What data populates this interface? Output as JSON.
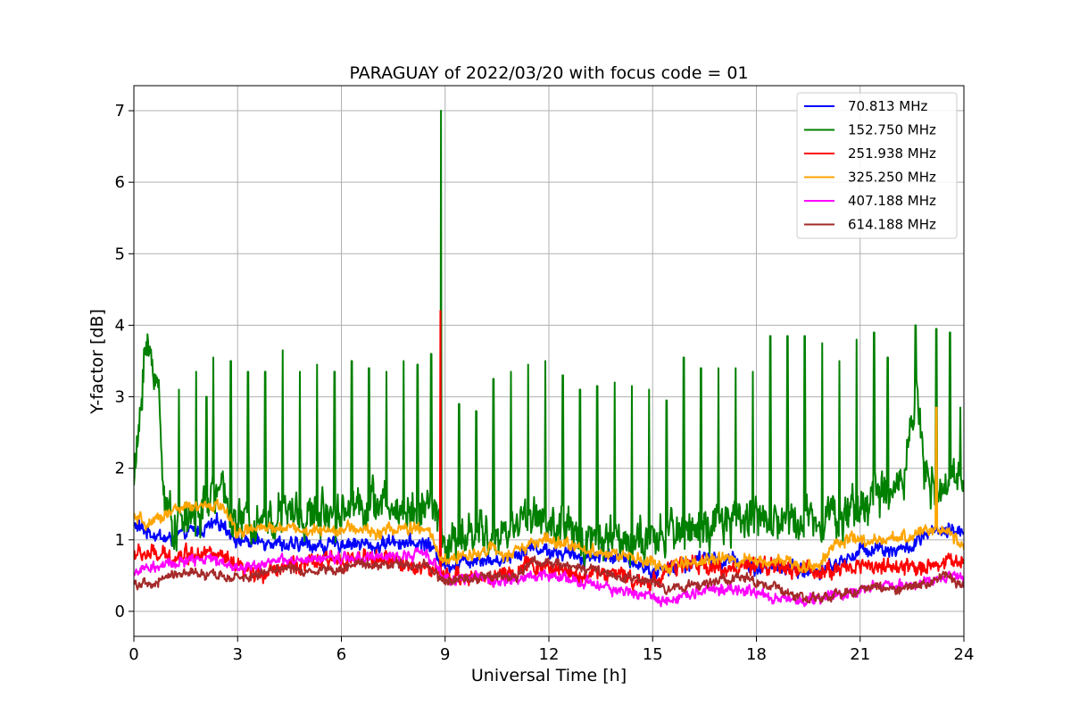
{
  "chart_data": {
    "type": "line",
    "title": "PARAGUAY of 2022/03/20 with focus code = 01",
    "xlabel": "Universal Time [h]",
    "ylabel": "Y-factor [dB]",
    "xlim": [
      0,
      24
    ],
    "ylim": [
      -0.35,
      7.35
    ],
    "xticks": [
      0,
      3,
      6,
      9,
      12,
      15,
      18,
      21,
      24
    ],
    "yticks": [
      0,
      1,
      2,
      3,
      4,
      5,
      6,
      7
    ],
    "grid": true,
    "legend_position": "top-right",
    "series": [
      {
        "name": " 70.813 MHz",
        "color": "#0000ff",
        "x": [
          0,
          0.5,
          1,
          1.5,
          2,
          2.5,
          3,
          3.5,
          4,
          4.5,
          5,
          5.5,
          6,
          6.5,
          7,
          7.5,
          8,
          8.5,
          9,
          9.5,
          10,
          10.5,
          11,
          11.5,
          12,
          12.5,
          13,
          13.5,
          14,
          14.5,
          15,
          15.5,
          16,
          16.5,
          17,
          17.5,
          18,
          18.5,
          19,
          19.5,
          20,
          20.5,
          21,
          21.5,
          22,
          22.5,
          23,
          23.5,
          24
        ],
        "y": [
          1.2,
          1.1,
          1.0,
          1.1,
          1.15,
          1.25,
          1.0,
          0.95,
          1.0,
          0.9,
          0.95,
          0.9,
          0.95,
          0.95,
          0.9,
          1.0,
          0.95,
          0.95,
          0.65,
          0.7,
          0.75,
          0.7,
          0.8,
          0.9,
          0.85,
          0.8,
          0.75,
          0.8,
          0.75,
          0.7,
          0.55,
          0.6,
          0.65,
          0.75,
          0.7,
          0.7,
          0.6,
          0.65,
          0.6,
          0.55,
          0.6,
          0.7,
          0.85,
          0.9,
          0.85,
          0.9,
          1.1,
          1.1,
          1.15
        ],
        "noise": 0.12,
        "spikes": []
      },
      {
        "name": "152.750 MHz",
        "color": "#008000",
        "x": [
          0,
          0.15,
          0.3,
          0.5,
          0.7,
          0.9,
          1.2,
          1.6,
          2.0,
          2.3,
          2.6,
          3.0,
          3.5,
          4,
          4.5,
          5,
          5.5,
          6,
          6.5,
          7,
          7.5,
          8,
          8.5,
          8.8,
          9.0,
          9.5,
          10,
          10.5,
          11,
          11.5,
          12,
          12.5,
          13,
          13.5,
          14,
          14.5,
          15,
          15.5,
          16,
          16.5,
          17,
          17.5,
          18,
          18.5,
          19,
          19.5,
          20,
          20.5,
          21,
          21.5,
          22,
          22.3,
          22.6,
          22.9,
          23.3,
          23.7,
          24
        ],
        "y": [
          1.8,
          2.5,
          3.7,
          3.5,
          3.2,
          1.5,
          1.2,
          1.3,
          1.4,
          1.7,
          1.6,
          1.2,
          1.3,
          1.3,
          1.4,
          1.3,
          1.4,
          1.4,
          1.5,
          1.5,
          1.4,
          1.4,
          1.5,
          1.3,
          0.9,
          1.0,
          1.1,
          1.0,
          1.2,
          1.4,
          1.2,
          1.1,
          1.0,
          1.1,
          1.0,
          1.0,
          0.9,
          1.1,
          1.2,
          1.1,
          1.2,
          1.3,
          1.4,
          1.2,
          1.3,
          1.3,
          1.4,
          1.3,
          1.5,
          1.6,
          1.7,
          2.0,
          3.2,
          1.8,
          1.6,
          1.8,
          2.1
        ],
        "noise": 0.35,
        "spikes": [
          [
            1.3,
            3.1
          ],
          [
            1.8,
            3.35
          ],
          [
            2.1,
            3.0
          ],
          [
            2.3,
            3.55
          ],
          [
            2.8,
            3.5
          ],
          [
            3.3,
            3.35
          ],
          [
            3.8,
            3.35
          ],
          [
            4.3,
            3.65
          ],
          [
            4.8,
            3.35
          ],
          [
            5.3,
            3.45
          ],
          [
            5.8,
            3.35
          ],
          [
            6.3,
            3.5
          ],
          [
            6.8,
            3.4
          ],
          [
            7.3,
            3.35
          ],
          [
            7.8,
            3.5
          ],
          [
            8.2,
            3.45
          ],
          [
            8.6,
            3.6
          ],
          [
            8.88,
            7.0
          ],
          [
            9.4,
            2.9
          ],
          [
            9.9,
            2.8
          ],
          [
            10.4,
            3.25
          ],
          [
            10.9,
            3.35
          ],
          [
            11.4,
            3.45
          ],
          [
            11.9,
            3.5
          ],
          [
            12.4,
            3.3
          ],
          [
            12.9,
            3.1
          ],
          [
            13.4,
            3.15
          ],
          [
            13.9,
            3.2
          ],
          [
            14.4,
            3.15
          ],
          [
            14.9,
            3.1
          ],
          [
            15.4,
            2.95
          ],
          [
            15.9,
            3.55
          ],
          [
            16.4,
            3.4
          ],
          [
            16.9,
            3.4
          ],
          [
            17.4,
            3.4
          ],
          [
            17.9,
            3.35
          ],
          [
            18.4,
            3.85
          ],
          [
            18.9,
            3.85
          ],
          [
            19.4,
            3.85
          ],
          [
            19.9,
            3.75
          ],
          [
            20.4,
            3.5
          ],
          [
            20.9,
            3.8
          ],
          [
            21.4,
            3.9
          ],
          [
            21.8,
            3.55
          ],
          [
            22.6,
            4.0
          ],
          [
            23.2,
            3.95
          ],
          [
            23.6,
            3.9
          ],
          [
            23.9,
            2.85
          ]
        ]
      },
      {
        "name": "251.938 MHz",
        "color": "#ff0000",
        "x": [
          0,
          0.5,
          1,
          1.5,
          2,
          2.5,
          3,
          3.5,
          4,
          4.5,
          5,
          5.5,
          6,
          6.5,
          7,
          7.5,
          8,
          8.5,
          9,
          9.5,
          10,
          10.5,
          11,
          11.5,
          12,
          12.5,
          13,
          13.5,
          14,
          14.5,
          15,
          15.5,
          16,
          16.5,
          17,
          17.5,
          18,
          18.5,
          19,
          19.5,
          20,
          20.5,
          21,
          21.5,
          22,
          22.5,
          23,
          23.5,
          24
        ],
        "y": [
          0.8,
          0.8,
          0.75,
          0.8,
          0.85,
          0.75,
          0.6,
          0.5,
          0.6,
          0.65,
          0.65,
          0.7,
          0.75,
          0.7,
          0.75,
          0.7,
          0.65,
          0.6,
          0.45,
          0.5,
          0.45,
          0.5,
          0.55,
          0.65,
          0.6,
          0.55,
          0.5,
          0.55,
          0.5,
          0.45,
          0.4,
          0.6,
          0.65,
          0.65,
          0.6,
          0.6,
          0.6,
          0.65,
          0.55,
          0.6,
          0.55,
          0.6,
          0.65,
          0.65,
          0.6,
          0.6,
          0.65,
          0.7,
          0.7
        ],
        "noise": 0.14,
        "spikes": [
          [
            8.86,
            4.2
          ]
        ]
      },
      {
        "name": "325.250 MHz",
        "color": "#ffa500",
        "x": [
          0,
          0.5,
          1,
          1.5,
          2,
          2.5,
          3,
          3.5,
          4,
          4.5,
          5,
          5.5,
          6,
          6.5,
          7,
          7.5,
          8,
          8.5,
          8.9,
          9.3,
          9.8,
          10.3,
          10.8,
          11.3,
          11.8,
          12.3,
          12.8,
          13.3,
          13.8,
          14.3,
          14.8,
          15.3,
          15.8,
          16.3,
          16.8,
          17.3,
          17.8,
          18.3,
          18.8,
          19.3,
          19.8,
          20.3,
          20.8,
          21.3,
          21.8,
          22.3,
          22.8,
          23.2,
          23.6,
          24
        ],
        "y": [
          1.3,
          1.2,
          1.4,
          1.45,
          1.45,
          1.5,
          1.1,
          1.15,
          1.15,
          1.2,
          1.1,
          1.15,
          1.15,
          1.15,
          1.1,
          1.15,
          1.15,
          1.15,
          0.7,
          0.75,
          0.8,
          0.9,
          0.75,
          0.9,
          1.0,
          0.95,
          0.9,
          0.85,
          0.8,
          0.75,
          0.7,
          0.6,
          0.65,
          0.7,
          0.75,
          0.7,
          0.7,
          0.7,
          0.7,
          0.65,
          0.65,
          0.95,
          1.0,
          0.95,
          1.0,
          1.05,
          1.1,
          1.15,
          1.1,
          0.9
        ],
        "noise": 0.1,
        "spikes": [
          [
            23.2,
            2.85
          ]
        ]
      },
      {
        "name": "407.188 MHz",
        "color": "#ff00ff",
        "x": [
          0,
          0.5,
          1,
          1.5,
          2,
          2.5,
          3,
          3.5,
          4,
          4.5,
          5,
          5.5,
          6,
          6.5,
          7,
          7.5,
          8,
          8.5,
          9,
          9.5,
          10,
          10.5,
          11,
          11.5,
          12,
          12.5,
          13,
          13.5,
          14,
          14.5,
          15,
          15.5,
          16,
          16.5,
          17,
          17.5,
          18,
          18.5,
          19,
          19.5,
          20,
          20.5,
          21,
          21.5,
          22,
          22.5,
          23,
          23.5,
          24
        ],
        "y": [
          0.55,
          0.6,
          0.65,
          0.7,
          0.75,
          0.7,
          0.6,
          0.65,
          0.7,
          0.7,
          0.7,
          0.75,
          0.75,
          0.75,
          0.75,
          0.75,
          0.8,
          0.8,
          0.45,
          0.45,
          0.5,
          0.4,
          0.45,
          0.5,
          0.5,
          0.45,
          0.4,
          0.35,
          0.3,
          0.25,
          0.2,
          0.15,
          0.25,
          0.3,
          0.3,
          0.3,
          0.25,
          0.2,
          0.15,
          0.15,
          0.2,
          0.25,
          0.3,
          0.35,
          0.35,
          0.4,
          0.45,
          0.5,
          0.45
        ],
        "noise": 0.09,
        "spikes": []
      },
      {
        "name": "614.188 MHz",
        "color": "#a52a2a",
        "x": [
          0,
          0.5,
          1,
          1.5,
          2,
          2.5,
          3,
          3.5,
          4,
          4.5,
          5,
          5.5,
          6,
          6.5,
          7,
          7.5,
          8,
          8.5,
          9,
          9.5,
          10,
          10.5,
          11,
          11.5,
          12,
          12.5,
          13,
          13.5,
          14,
          14.5,
          15,
          15.5,
          16,
          16.5,
          17,
          17.5,
          18,
          18.5,
          19,
          19.5,
          20,
          20.5,
          21,
          21.5,
          22,
          22.5,
          23,
          23.5,
          24
        ],
        "y": [
          0.4,
          0.35,
          0.5,
          0.55,
          0.5,
          0.5,
          0.45,
          0.5,
          0.6,
          0.6,
          0.55,
          0.6,
          0.6,
          0.65,
          0.65,
          0.65,
          0.65,
          0.65,
          0.4,
          0.45,
          0.5,
          0.5,
          0.45,
          0.7,
          0.7,
          0.65,
          0.6,
          0.55,
          0.45,
          0.45,
          0.4,
          0.3,
          0.35,
          0.4,
          0.45,
          0.45,
          0.4,
          0.35,
          0.25,
          0.15,
          0.2,
          0.25,
          0.3,
          0.35,
          0.3,
          0.35,
          0.4,
          0.5,
          0.35
        ],
        "noise": 0.08,
        "spikes": []
      }
    ]
  }
}
